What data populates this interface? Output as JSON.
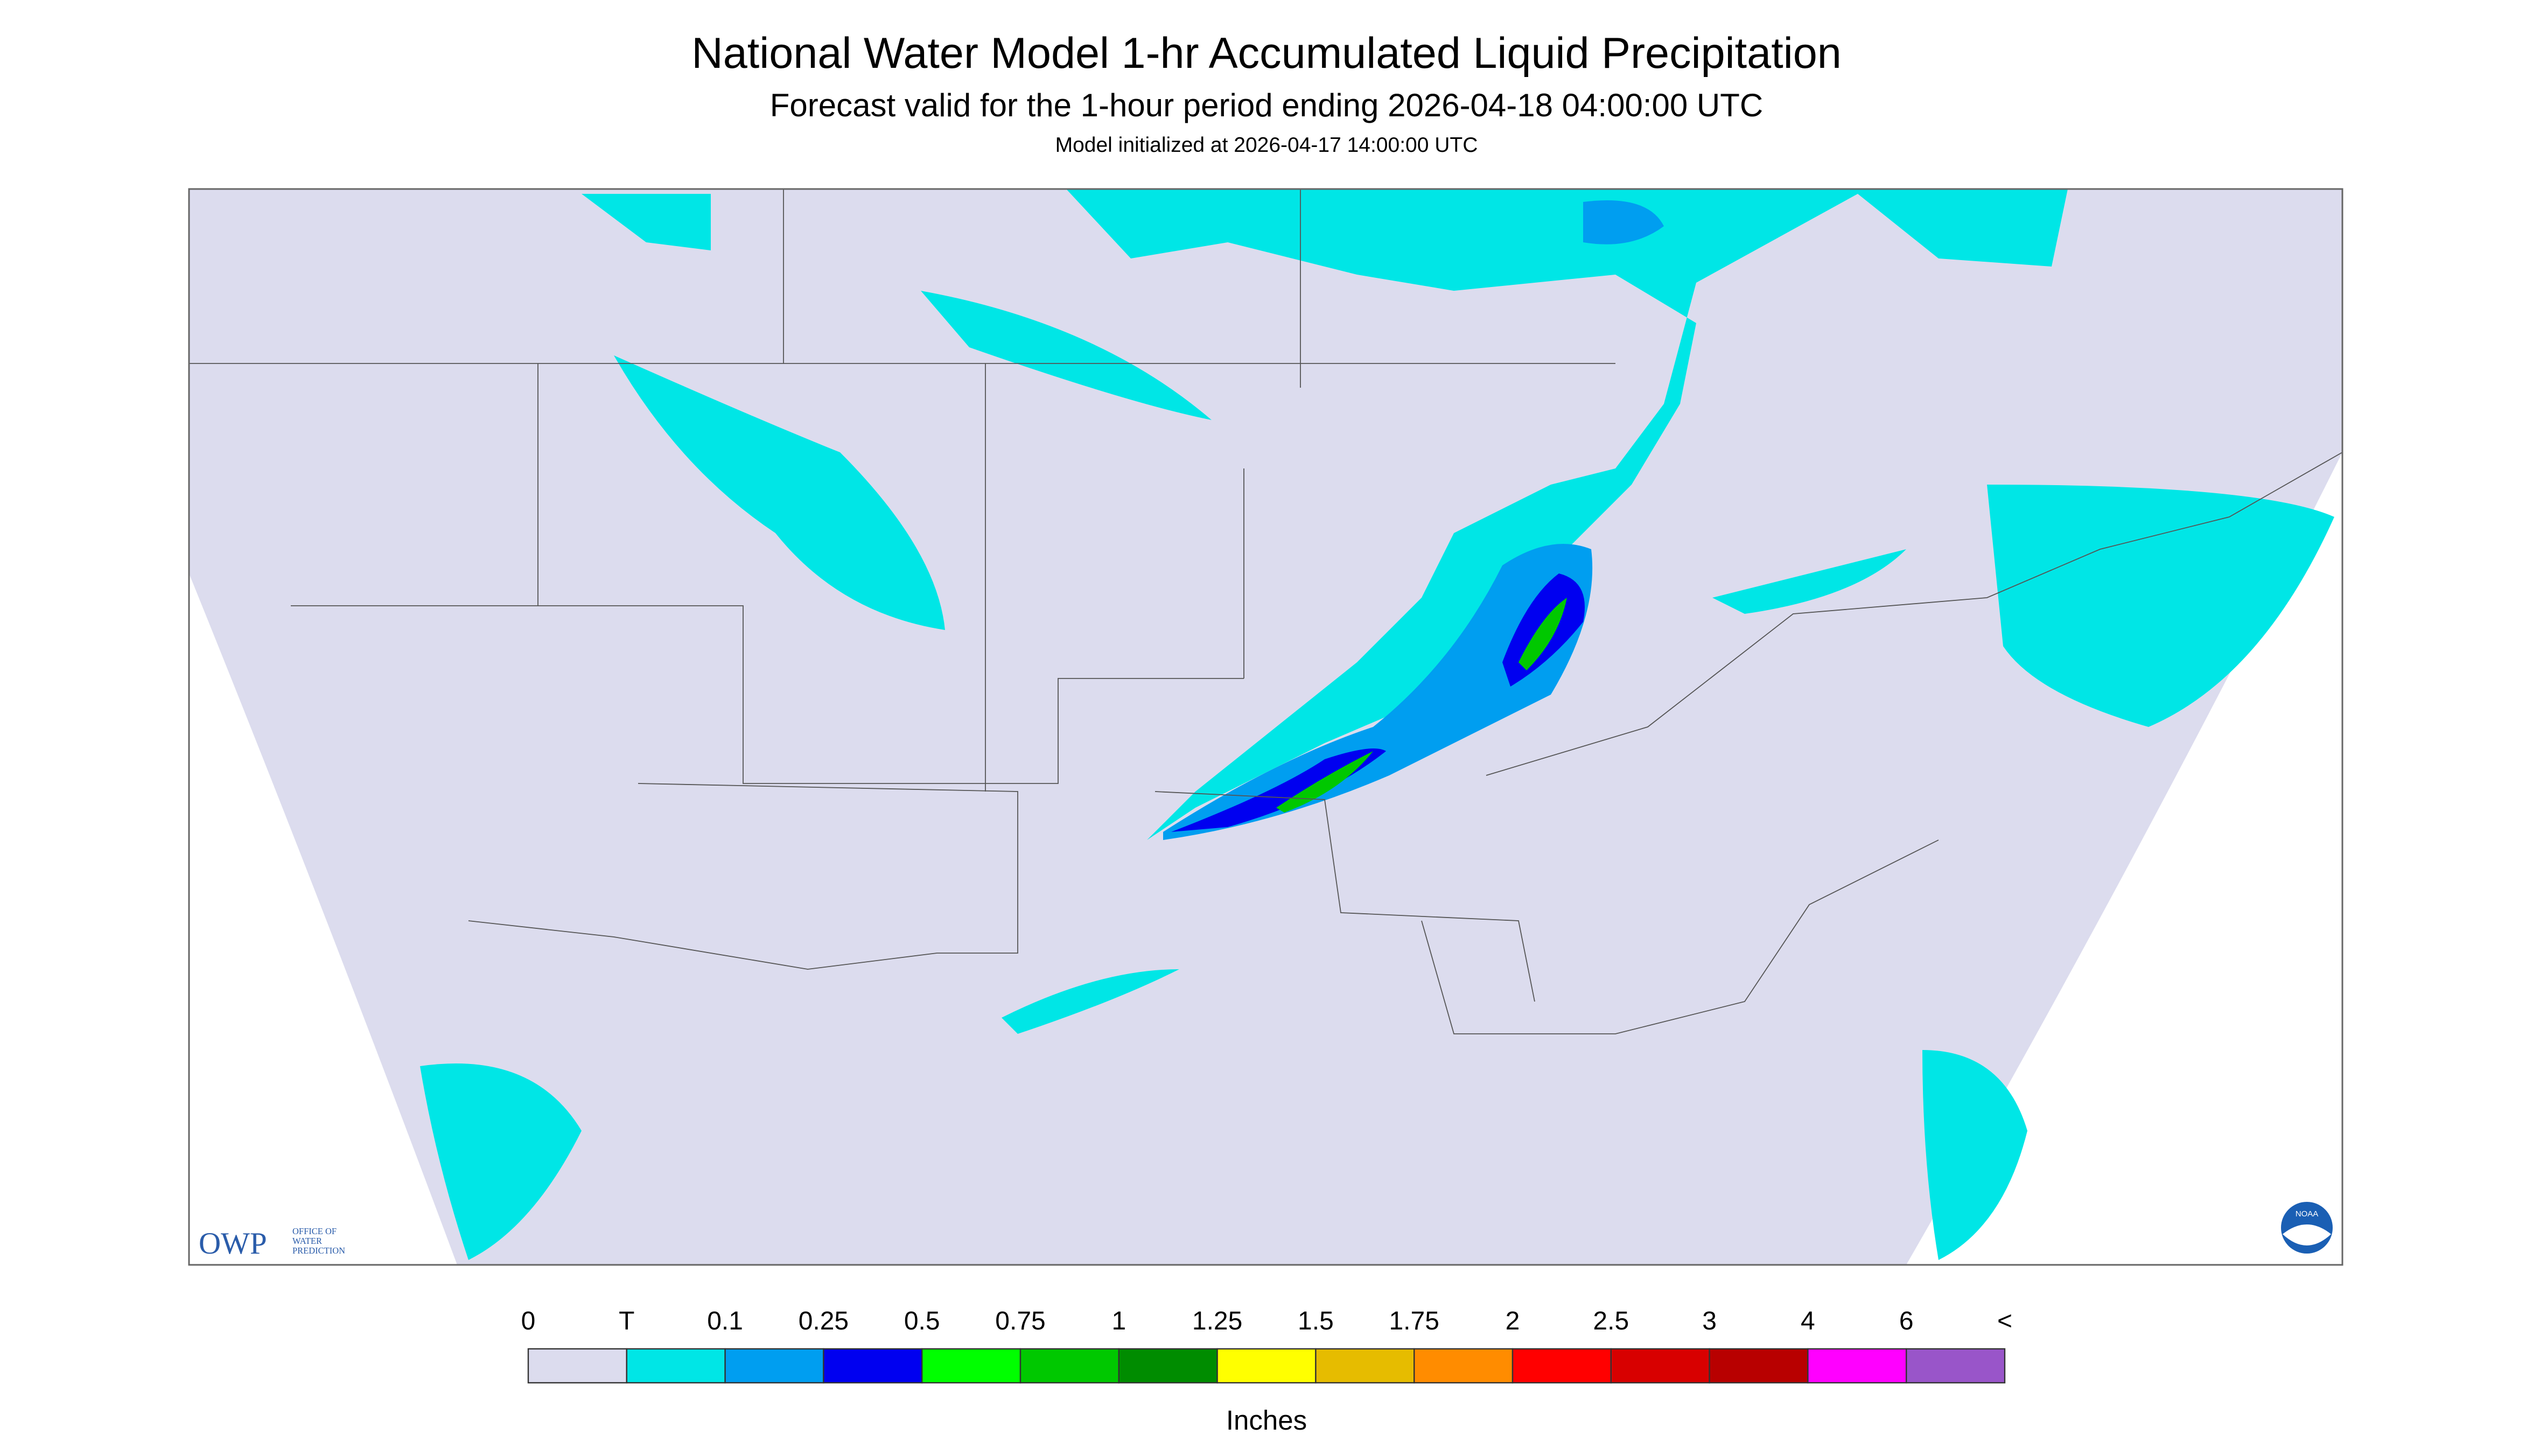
{
  "header": {
    "title": "National Water Model 1-hr Accumulated Liquid Precipitation",
    "subtitle": "Forecast valid for the 1-hour period ending 2026-04-18 04:00:00 UTC",
    "init": "Model initialized at 2026-04-17 14:00:00 UTC"
  },
  "logos": {
    "owp": "OWP",
    "owp_text": [
      "OFFICE OF",
      "WATER",
      "PREDICTION"
    ],
    "noaa": "NOAA"
  },
  "legend": {
    "labels": [
      "0",
      "T",
      "0.1",
      "0.25",
      "0.5",
      "0.75",
      "1",
      "1.25",
      "1.5",
      "1.75",
      "2",
      "2.5",
      "3",
      "4",
      "6",
      "<"
    ],
    "colors": [
      "#dcdcee",
      "#00e6e6",
      "#009ef0",
      "#0000f0",
      "#00ff00",
      "#00c800",
      "#008c00",
      "#ffff00",
      "#e6bc00",
      "#ff8c00",
      "#ff0000",
      "#d80000",
      "#b80000",
      "#ff00ff",
      "#9955c9"
    ],
    "unit": "Inches"
  }
}
